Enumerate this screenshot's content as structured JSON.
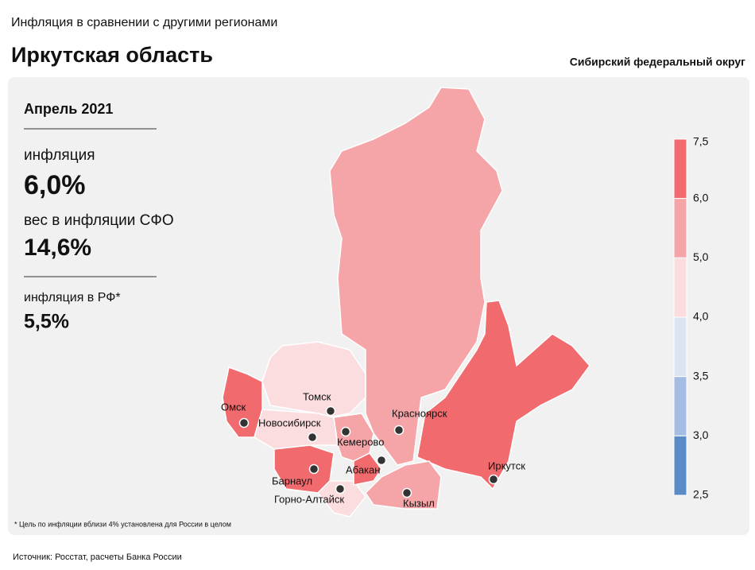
{
  "header": {
    "subtitle": "Инфляция в сравнении с другими регионами",
    "title": "Иркутская область",
    "district": "Сибирский федеральный округ"
  },
  "info": {
    "period": "Апрель 2021",
    "inflation_label": "инфляция",
    "inflation_value": "6,0%",
    "weight_label": "вес в инфляции  СФО",
    "weight_value": "14,6%",
    "rf_label": "инфляция  в РФ*",
    "rf_value": "5,5%"
  },
  "legend": {
    "labels": [
      "7,5",
      "6,0",
      "5,0",
      "4,0",
      "3,5",
      "3,0",
      "2,5"
    ],
    "colors": [
      "#f06a6e",
      "#f5a5a8",
      "#fbdcdf",
      "#dce5f3",
      "#a6bde3",
      "#5b8bc7"
    ]
  },
  "cities": [
    "Омск",
    "Томск",
    "Новосибирск",
    "Красноярск",
    "Кемерово",
    "Абакан",
    "Барнаул",
    "Иркутск",
    "Горно-Алтайск",
    "Кызыл"
  ],
  "footnote": "* Цель по инфляции вблизи 4% установлена для России в целом",
  "source": "Источник: Росстат, расчеты Банка России"
}
